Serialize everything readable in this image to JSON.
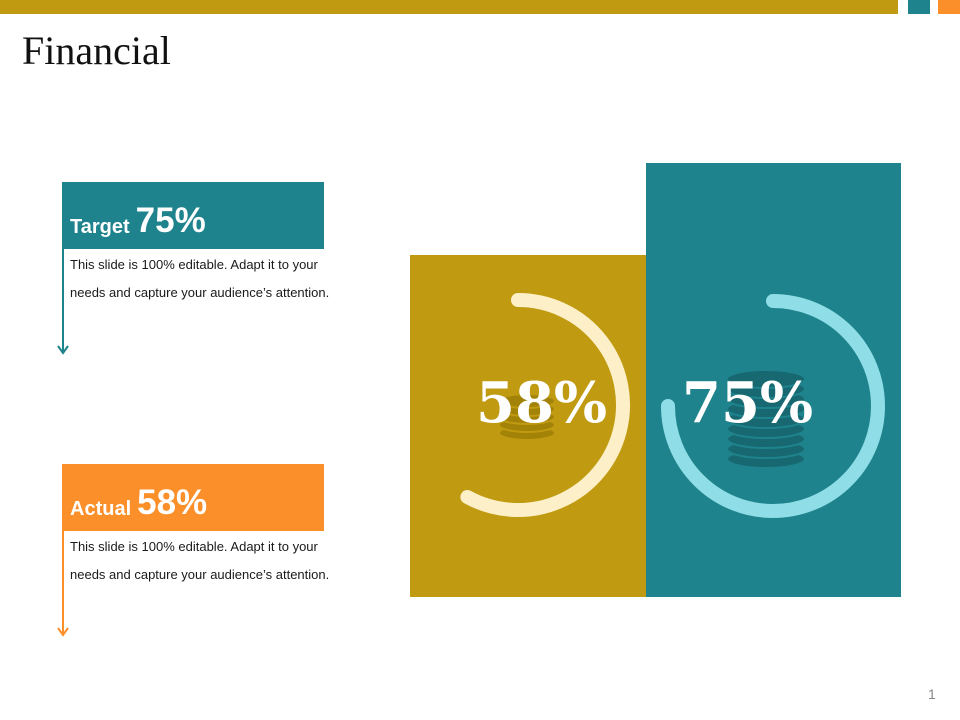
{
  "slide": {
    "title": "Financial",
    "page_number": "1"
  },
  "colors": {
    "gold": "#c09a10",
    "teal": "#1e838c",
    "orange": "#fb8f2a",
    "light_gold_ring": "#fdf0c8",
    "light_teal_ring": "#8fdde6"
  },
  "target": {
    "label": "Target",
    "value": "75%",
    "percent": 75,
    "description": "This slide is 100% editable. Adapt it to your needs and capture your audience’s attention."
  },
  "actual": {
    "label": "Actual",
    "value": "58%",
    "percent": 58,
    "description": "This slide is 100% editable. Adapt it to your needs and capture your audience’s attention."
  },
  "visual": {
    "actual_value": "58%",
    "target_value": "75%",
    "icons": [
      "coins-icon",
      "coins-icon"
    ]
  }
}
